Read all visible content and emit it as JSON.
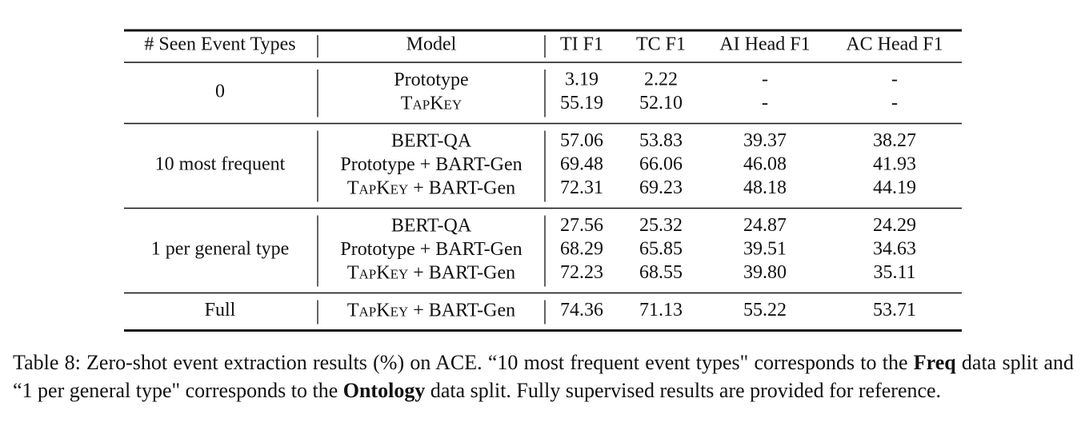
{
  "table": {
    "header": [
      "# Seen Event Types",
      "Model",
      "TI F1",
      "TC F1",
      "AI Head F1",
      "AC Head F1"
    ],
    "small_caps_words": [
      "TapKey"
    ],
    "groups": [
      {
        "seen": "0",
        "rows": [
          {
            "model": [
              "Prototype"
            ],
            "scores": [
              "3.19",
              "2.22",
              "-",
              "-"
            ]
          },
          {
            "model": [
              "TapKey"
            ],
            "scores": [
              "55.19",
              "52.10",
              "-",
              "-"
            ]
          }
        ]
      },
      {
        "seen": "10 most frequent",
        "rows": [
          {
            "model": [
              "BERT-QA"
            ],
            "scores": [
              "57.06",
              "53.83",
              "39.37",
              "38.27"
            ]
          },
          {
            "model": [
              "Prototype",
              "+",
              "BART-Gen"
            ],
            "scores": [
              "69.48",
              "66.06",
              "46.08",
              "41.93"
            ]
          },
          {
            "model": [
              "TapKey",
              "+",
              "BART-Gen"
            ],
            "scores": [
              "72.31",
              "69.23",
              "48.18",
              "44.19"
            ]
          }
        ]
      },
      {
        "seen": "1 per general type",
        "rows": [
          {
            "model": [
              "BERT-QA"
            ],
            "scores": [
              "27.56",
              "25.32",
              "24.87",
              "24.29"
            ]
          },
          {
            "model": [
              "Prototype",
              "+",
              "BART-Gen"
            ],
            "scores": [
              "68.29",
              "65.85",
              "39.51",
              "34.63"
            ]
          },
          {
            "model": [
              "TapKey",
              "+",
              "BART-Gen"
            ],
            "scores": [
              "72.23",
              "68.55",
              "39.80",
              "35.11"
            ]
          }
        ]
      },
      {
        "seen": "Full",
        "rows": [
          {
            "model": [
              "TapKey",
              "+",
              "BART-Gen"
            ],
            "scores": [
              "74.36",
              "71.13",
              "55.22",
              "53.71"
            ]
          }
        ]
      }
    ]
  },
  "caption": [
    {
      "text": "Table 8: Zero-shot event extraction results (%) on ACE. “10 most frequent event types\" corresponds to the ",
      "bold": false
    },
    {
      "text": "Freq",
      "bold": true
    },
    {
      "text": " data split and “1 per general type\" corresponds to the ",
      "bold": false
    },
    {
      "text": "Ontology",
      "bold": true
    },
    {
      "text": " data split. Fully supervised results are provided for reference.",
      "bold": false
    }
  ]
}
